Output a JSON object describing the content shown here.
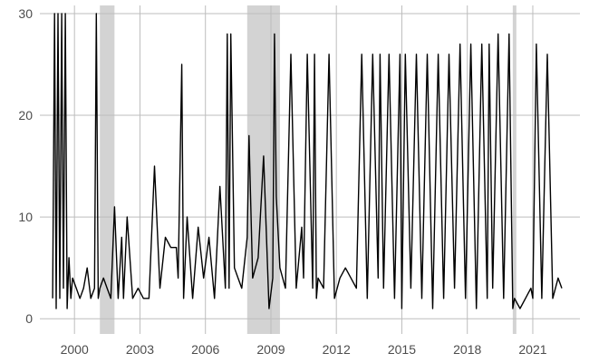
{
  "chart_data": {
    "type": "line",
    "title": "",
    "xlabel": "",
    "ylabel": "",
    "grid": true,
    "legend": "none",
    "xlim": [
      "1998-06-01",
      "2023-03-01"
    ],
    "ylim": [
      -1.5,
      30.8
    ],
    "x_ticks": [
      "2000",
      "2003",
      "2006",
      "2009",
      "2012",
      "2015",
      "2018",
      "2021"
    ],
    "x_tick_dates": [
      "2000-01-01",
      "2003-01-01",
      "2006-01-01",
      "2009-01-01",
      "2012-01-01",
      "2015-01-01",
      "2018-01-01",
      "2021-01-01"
    ],
    "y_ticks": [
      "0",
      "10",
      "20",
      "30"
    ],
    "y_tick_values": [
      0,
      10,
      20,
      30
    ],
    "line_color": "#000000",
    "shade_color": "#d3d3d3",
    "shaded_periods": [
      {
        "start": "2001-03-01",
        "end": "2001-11-01"
      },
      {
        "start": "2007-12-01",
        "end": "2009-06-01"
      },
      {
        "start": "2020-02-01",
        "end": "2020-04-01"
      }
    ],
    "series": [
      {
        "x": [
          "1999-01-01",
          "1999-02-01",
          "1999-03-01",
          "1999-04-01",
          "1999-05-01",
          "1999-06-01",
          "1999-07-01",
          "1999-08-01",
          "1999-09-01",
          "1999-10-01",
          "1999-11-01",
          "1999-12-01",
          "2000-02-01",
          "2000-04-01",
          "2000-06-01",
          "2000-08-01",
          "2000-10-01",
          "2000-12-01",
          "2001-01-01",
          "2001-02-01",
          "2001-03-01",
          "2001-05-01",
          "2001-07-01",
          "2001-09-01",
          "2001-11-01",
          "2002-01-01",
          "2002-03-01",
          "2002-04-01",
          "2002-06-01",
          "2002-09-01",
          "2002-12-01",
          "2003-03-01",
          "2003-06-01",
          "2003-09-01",
          "2003-12-01",
          "2004-03-01",
          "2004-06-01",
          "2004-09-01",
          "2004-10-01",
          "2004-12-01",
          "2005-01-01",
          "2005-03-01",
          "2005-06-01",
          "2005-09-01",
          "2005-12-01",
          "2006-03-01",
          "2006-06-01",
          "2006-09-01",
          "2006-12-01",
          "2007-01-01",
          "2007-02-01",
          "2007-03-01",
          "2007-05-01",
          "2007-07-01",
          "2007-09-01",
          "2007-12-01",
          "2008-01-01",
          "2008-03-01",
          "2008-06-01",
          "2008-09-01",
          "2008-12-01",
          "2009-02-01",
          "2009-03-01",
          "2009-04-01",
          "2009-06-01",
          "2009-09-01",
          "2009-12-01",
          "2010-03-01",
          "2010-06-01",
          "2010-07-01",
          "2010-09-01",
          "2010-12-01",
          "2011-01-01",
          "2011-02-01",
          "2011-03-01",
          "2011-06-01",
          "2011-09-01",
          "2011-12-01",
          "2012-03-01",
          "2012-06-01",
          "2012-09-01",
          "2012-12-01",
          "2013-03-01",
          "2013-06-01",
          "2013-09-01",
          "2013-12-01",
          "2014-01-01",
          "2014-03-01",
          "2014-06-01",
          "2014-09-01",
          "2014-12-01",
          "2015-01-01",
          "2015-03-01",
          "2015-06-01",
          "2015-09-01",
          "2015-12-01",
          "2016-03-01",
          "2016-06-01",
          "2016-09-01",
          "2016-12-01",
          "2017-03-01",
          "2017-06-01",
          "2017-09-01",
          "2017-12-01",
          "2018-03-01",
          "2018-06-01",
          "2018-09-01",
          "2018-12-01",
          "2019-01-01",
          "2019-03-01",
          "2019-06-01",
          "2019-09-01",
          "2019-12-01",
          "2020-02-01",
          "2020-03-01",
          "2020-06-01",
          "2020-09-01",
          "2020-12-01",
          "2021-01-01",
          "2021-03-01",
          "2021-06-01",
          "2021-09-01",
          "2021-12-01",
          "2022-03-01",
          "2022-05-01"
        ],
        "y": [
          2,
          30,
          1,
          30,
          2,
          30,
          3,
          30,
          1,
          6,
          2,
          4,
          3,
          2,
          3,
          5,
          2,
          3,
          30,
          2,
          3,
          4,
          3,
          2,
          11,
          2,
          8,
          2,
          10,
          2,
          3,
          2,
          2,
          15,
          3,
          8,
          7,
          7,
          4,
          25,
          2,
          10,
          2,
          9,
          4,
          8,
          2,
          13,
          3,
          28,
          3,
          28,
          5,
          4,
          3,
          8,
          18,
          4,
          6,
          16,
          1,
          4,
          28,
          12,
          5,
          3,
          26,
          3,
          9,
          4,
          26,
          3,
          26,
          2,
          4,
          3,
          26,
          2,
          4,
          5,
          4,
          3,
          26,
          2,
          26,
          4,
          26,
          3,
          26,
          2,
          26,
          1,
          26,
          3,
          26,
          2,
          26,
          1,
          26,
          2,
          26,
          3,
          27,
          2,
          27,
          1,
          27,
          2,
          27,
          3,
          28,
          2,
          28,
          1,
          2,
          1,
          2,
          3,
          2,
          27,
          2,
          26,
          2,
          4,
          3
        ]
      }
    ]
  }
}
